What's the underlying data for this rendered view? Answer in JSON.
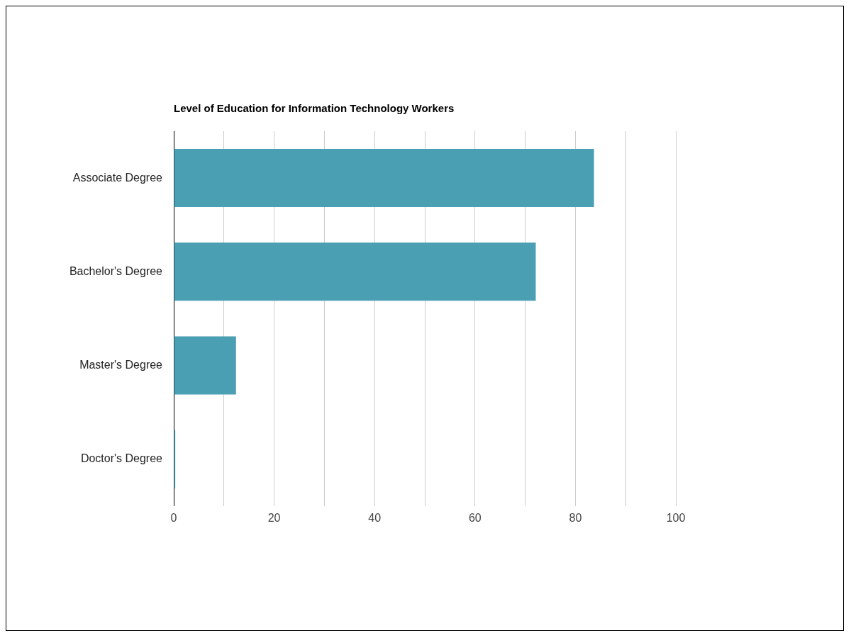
{
  "chart_data": {
    "type": "bar",
    "orientation": "horizontal",
    "title": "Level of Education for Information Technology Workers",
    "categories": [
      "Associate Degree",
      "Bachelor's Degree",
      "Master's Degree",
      "Doctor's Degree"
    ],
    "values": [
      83.7,
      72.1,
      12.4,
      0.3
    ],
    "color": "#4a9fb2",
    "xlim": [
      0,
      100
    ],
    "xticks": [
      0,
      {
        "value": 10,
        "label": null
      },
      20,
      {
        "value": 30,
        "label": null
      },
      40,
      {
        "value": 50,
        "label": null
      },
      60,
      {
        "value": 70,
        "label": null
      },
      80,
      {
        "value": 90,
        "label": null
      },
      100
    ],
    "grid": "x",
    "legend": false
  }
}
